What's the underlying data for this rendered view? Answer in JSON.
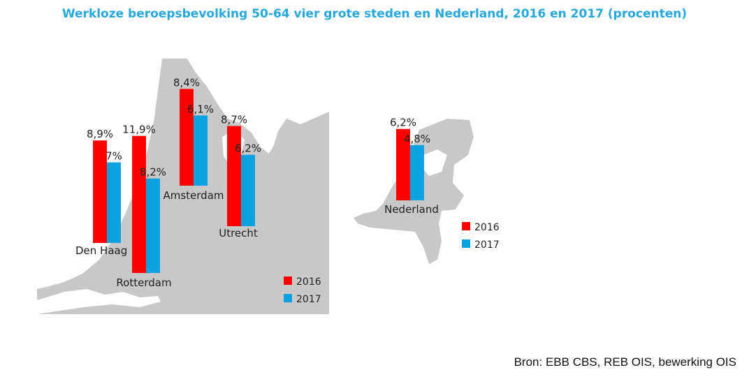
{
  "title": "Werkloze beroepsbevolking 50-64 vier grote steden en Nederland, 2016 en 2017 (procenten)",
  "source": "Bron: EBB CBS, REB OIS, bewerking OIS",
  "colors": {
    "y2016": "#ff0000",
    "y2017": "#0ca1df",
    "map": "#c8c8c8",
    "title": "#26a7de"
  },
  "chart_data": [
    {
      "type": "bar",
      "background": "map of the Randstad region",
      "categories": [
        "Den Haag",
        "Rotterdam",
        "Amsterdam",
        "Utrecht"
      ],
      "series": [
        {
          "name": "2016",
          "values": [
            8.9,
            11.9,
            8.4,
            8.7
          ],
          "labels": [
            "8,9%",
            "11,9%",
            "8,4%",
            "8,7%"
          ]
        },
        {
          "name": "2017",
          "values": [
            7.0,
            8.2,
            6.1,
            6.2
          ],
          "labels": [
            "7%",
            "8,2%",
            "6,1%",
            "6,2%"
          ]
        }
      ],
      "legend": [
        "2016",
        "2017"
      ],
      "legend_position": "bottom-right"
    },
    {
      "type": "bar",
      "background": "map of the Netherlands",
      "categories": [
        "Nederland"
      ],
      "series": [
        {
          "name": "2016",
          "values": [
            6.2
          ],
          "labels": [
            "6,2%"
          ]
        },
        {
          "name": "2017",
          "values": [
            4.8
          ],
          "labels": [
            "4,8%"
          ]
        }
      ],
      "legend": [
        "2016",
        "2017"
      ],
      "legend_position": "bottom-right"
    }
  ]
}
